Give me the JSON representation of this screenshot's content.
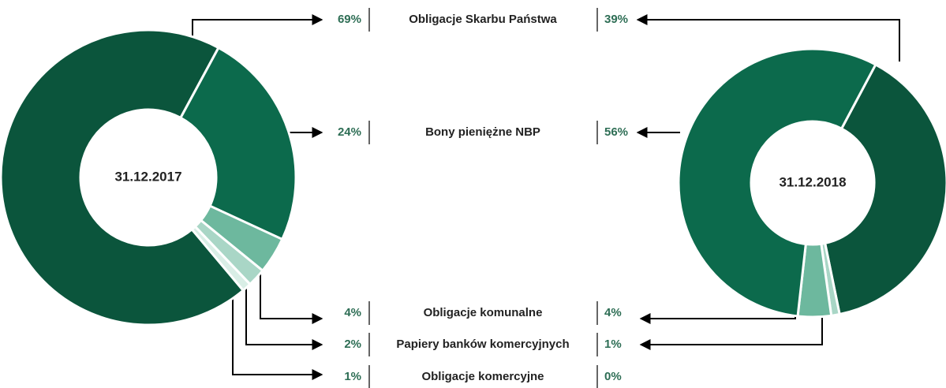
{
  "chart_data": {
    "type": "pie",
    "categories": [
      "Obligacje Skarbu Państwa",
      "Bony pieniężne NBP",
      "Obligacje komunalne",
      "Papiery banków komercyjnych",
      "Obligacje komercyjne"
    ],
    "colors": [
      "#0b553c",
      "#0c6a4c",
      "#6db89e",
      "#a9d6c6",
      "#d9eee6"
    ],
    "series": [
      {
        "name": "31.12.2017",
        "values": [
          69,
          24,
          4,
          2,
          1
        ],
        "value_labels": [
          "69%",
          "24%",
          "4%",
          "2%",
          "1%"
        ]
      },
      {
        "name": "31.12.2018",
        "values": [
          39,
          56,
          4,
          1,
          0
        ],
        "value_labels": [
          "39%",
          "56%",
          "4%",
          "1%",
          "0%"
        ]
      }
    ]
  }
}
